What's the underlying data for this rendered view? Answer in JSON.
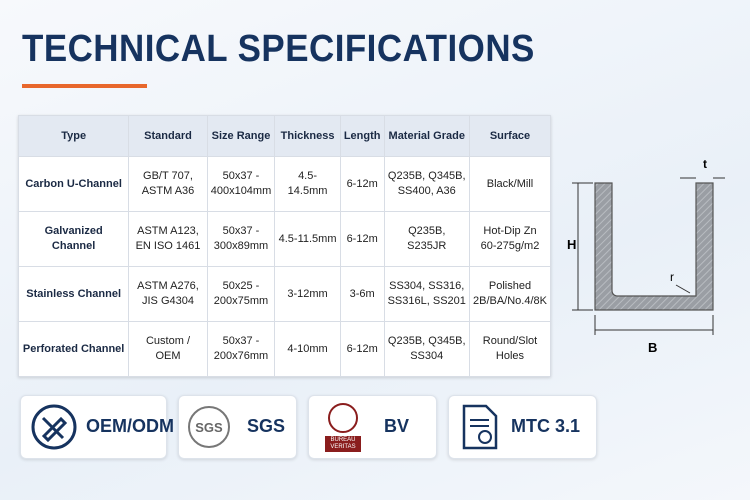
{
  "header": {
    "title": "TECHNICAL SPECIFICATIONS"
  },
  "table": {
    "columns": [
      "Type",
      "Standard",
      "Size Range",
      "Thickness",
      "Length",
      "Material Grade",
      "Surface"
    ],
    "rows": [
      [
        "Carbon U-Channel",
        "GB/T 707,\nASTM A36",
        "50x37 -\n400x104mm",
        "4.5-14.5mm",
        "6-12m",
        "Q235B, Q345B,\nSS400, A36",
        "Black/Mill"
      ],
      [
        "Galvanized Channel",
        "ASTM A123,\nEN ISO 1461",
        "50x37 -\n300x89mm",
        "4.5-11.5mm",
        "6-12m",
        "Q235B, S235JR",
        "Hot-Dip Zn\n60-275g/m2"
      ],
      [
        "Stainless Channel",
        "ASTM A276,\nJIS G4304",
        "50x25 -\n200x75mm",
        "3-12mm",
        "3-6m",
        "SS304, SS316,\nSS316L, SS201",
        "Polished\n2B/BA/No.4/8K"
      ],
      [
        "Perforated Channel",
        "Custom / OEM",
        "50x37 -\n200x76mm",
        "4-10mm",
        "6-12m",
        "Q235B, Q345B,\nSS304",
        "Round/Slot\nHoles"
      ]
    ]
  },
  "diagram": {
    "labels": {
      "t": "t",
      "h": "H",
      "r": "r",
      "b": "B"
    }
  },
  "badges": [
    {
      "label": "OEM/ODM"
    },
    {
      "logo": "SGS",
      "label": "SGS"
    },
    {
      "logo": "BUREAU\nVERITAS",
      "label": "BV"
    },
    {
      "label": "MTC 3.1"
    }
  ]
}
